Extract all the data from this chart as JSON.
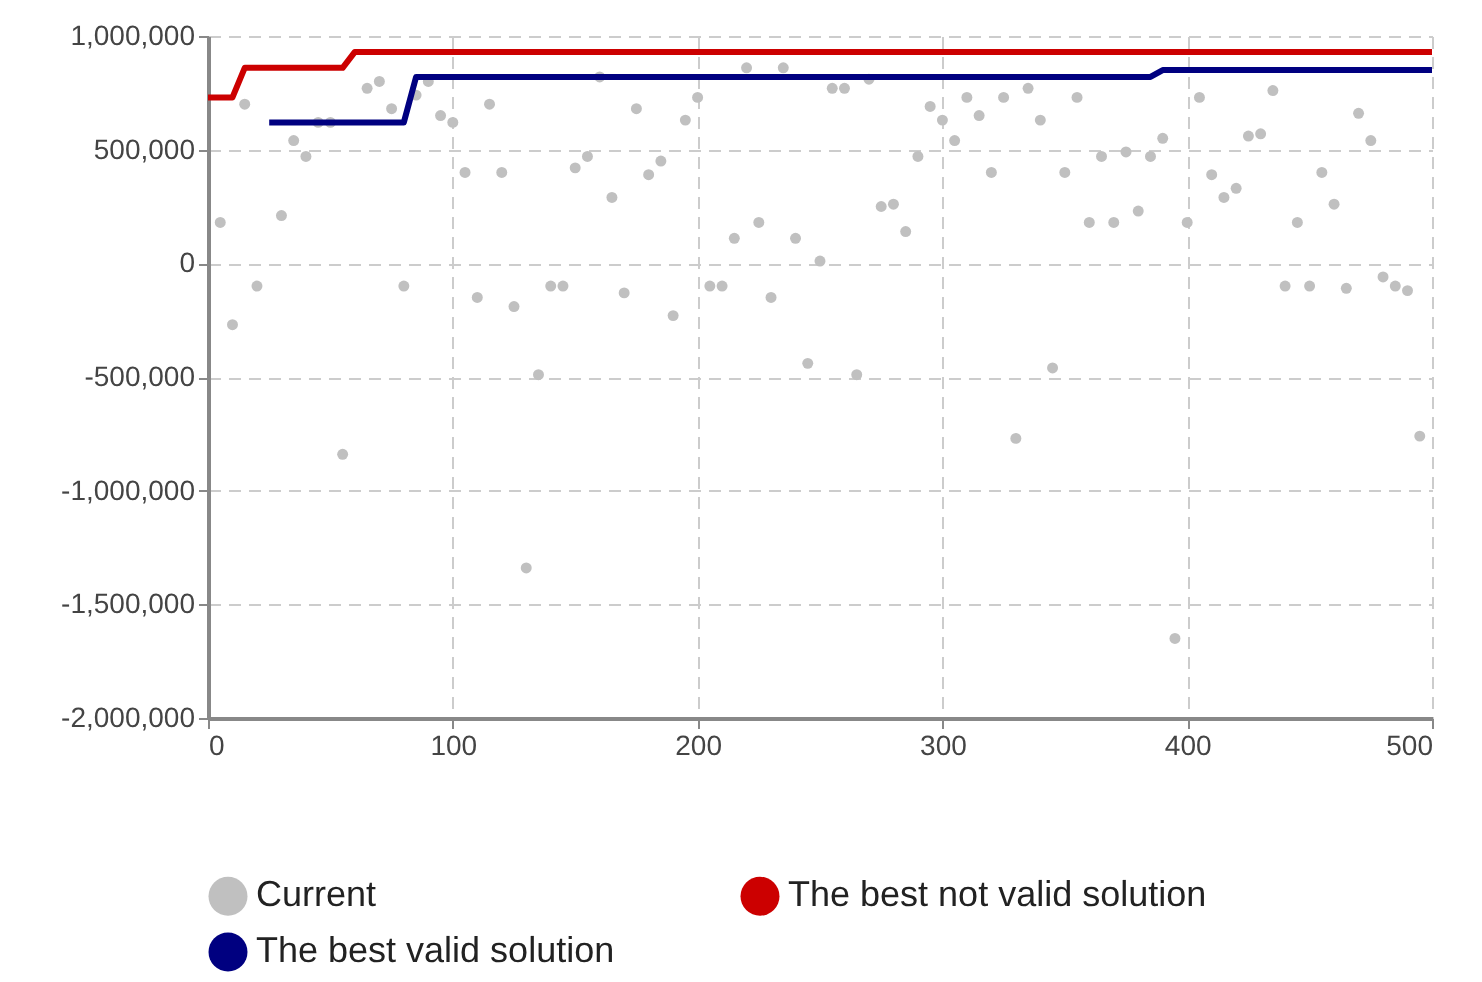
{
  "chart_data": {
    "type": "scatter",
    "xlim": [
      0,
      500
    ],
    "xticks": [
      0,
      100,
      200,
      300,
      400,
      500
    ],
    "ylim": [
      -2000000,
      1000000
    ],
    "yticks": [
      {
        "value": -2000000,
        "label": "-2,000,000"
      },
      {
        "value": -1500000,
        "label": "-1,500,000"
      },
      {
        "value": -1000000,
        "label": "-1,000,000"
      },
      {
        "value": -500000,
        "label": "-500,000"
      },
      {
        "value": 0,
        "label": "0"
      },
      {
        "value": 500000,
        "label": "500,000"
      },
      {
        "value": 1000000,
        "label": "1,000,000"
      }
    ],
    "grid": true,
    "legend": "bottom",
    "series": [
      {
        "name": "Current",
        "color": "#c0c0c0",
        "x": [
          5,
          10,
          15,
          20,
          30,
          35,
          40,
          45,
          50,
          55,
          65,
          70,
          75,
          80,
          85,
          90,
          95,
          100,
          105,
          110,
          115,
          120,
          125,
          130,
          135,
          140,
          145,
          150,
          155,
          160,
          165,
          170,
          175,
          180,
          185,
          190,
          195,
          200,
          205,
          210,
          215,
          220,
          225,
          230,
          235,
          240,
          245,
          250,
          255,
          260,
          265,
          270,
          275,
          280,
          285,
          290,
          295,
          300,
          305,
          310,
          315,
          320,
          325,
          330,
          335,
          340,
          345,
          350,
          355,
          360,
          365,
          370,
          375,
          380,
          385,
          390,
          395,
          400,
          405,
          410,
          415,
          420,
          425,
          430,
          435,
          440,
          445,
          450,
          455,
          460,
          465,
          470,
          475,
          480,
          485,
          490,
          495
        ],
        "values": [
          180000,
          -270000,
          700000,
          -100000,
          210000,
          540000,
          470000,
          620000,
          620000,
          -840000,
          770000,
          800000,
          680000,
          -100000,
          740000,
          800000,
          650000,
          620000,
          400000,
          -150000,
          700000,
          400000,
          -190000,
          -1340000,
          -490000,
          -100000,
          -100000,
          420000,
          470000,
          820000,
          290000,
          -130000,
          680000,
          390000,
          450000,
          -230000,
          630000,
          730000,
          -100000,
          -100000,
          110000,
          860000,
          180000,
          -150000,
          860000,
          110000,
          -440000,
          10000,
          770000,
          770000,
          -490000,
          810000,
          250000,
          260000,
          140000,
          470000,
          690000,
          630000,
          540000,
          730000,
          650000,
          400000,
          730000,
          -770000,
          770000,
          630000,
          -460000,
          400000,
          730000,
          180000,
          470000,
          180000,
          490000,
          230000,
          470000,
          550000,
          -1650000,
          180000,
          730000,
          390000,
          290000,
          330000,
          560000,
          570000,
          760000,
          -100000,
          180000,
          -100000,
          400000,
          260000,
          -110000,
          660000,
          540000,
          -60000,
          -100000,
          -120000,
          -760000
        ]
      },
      {
        "name": "The best not valid solution",
        "type": "line",
        "color": "#cc0000",
        "x": [
          0,
          10,
          15,
          55,
          60,
          500
        ],
        "values": [
          730000,
          730000,
          860000,
          860000,
          930000,
          930000
        ]
      },
      {
        "name": "The best valid solution",
        "type": "line",
        "color": "#000080",
        "x": [
          25,
          80,
          85,
          385,
          390,
          500
        ],
        "values": [
          620000,
          620000,
          820000,
          820000,
          850000,
          850000
        ]
      }
    ]
  }
}
